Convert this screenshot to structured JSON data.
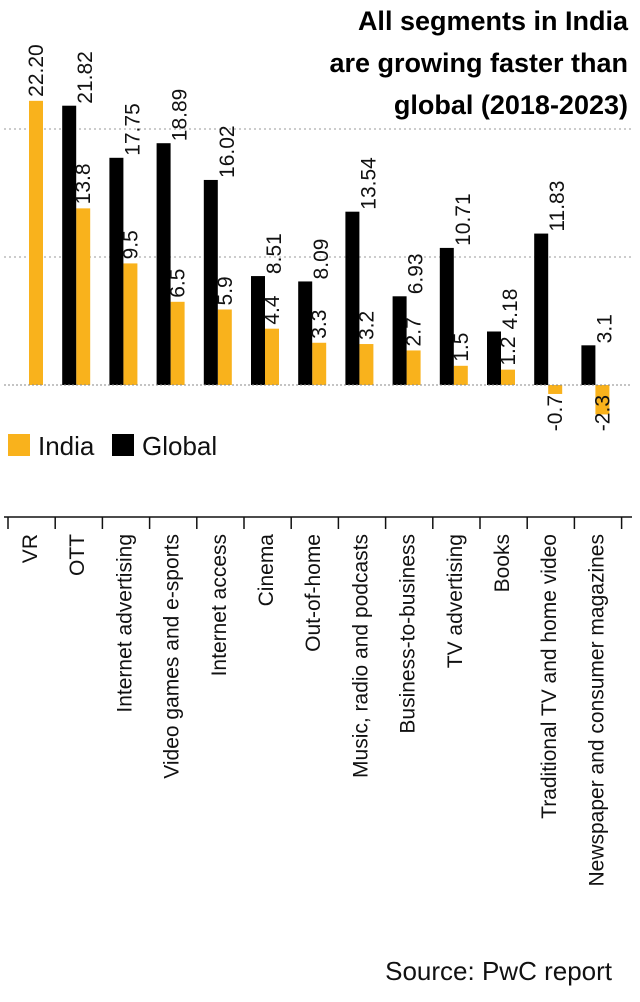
{
  "chart_data": {
    "type": "bar",
    "title": [
      "All segments in India",
      "are growing faster than",
      "global (2018-2023)"
    ],
    "categories": [
      "VR",
      "OTT",
      "Internet advertising",
      "Video games and e-sports",
      "Internet access",
      "Cinema",
      "Out-of-home",
      "Music, radio and podcasts",
      "Business-to-business",
      "TV advertising",
      "Books",
      "Traditional TV and home video",
      "Newspaper and consumer magazines"
    ],
    "series": [
      {
        "name": "India",
        "color": "#f9b21c",
        "values": [
          22.2,
          13.8,
          9.5,
          6.5,
          5.9,
          4.4,
          3.3,
          3.2,
          2.7,
          1.5,
          1.2,
          -0.7,
          -2.3
        ],
        "labels": [
          "22.20",
          "13.8",
          "9.5",
          "6.5",
          "5.9",
          "4.4",
          "3.3",
          "3.2",
          "2.7",
          "1.5",
          "1.2",
          "-0.7",
          "-2.3"
        ]
      },
      {
        "name": "Global",
        "color": "#000000",
        "values": [
          null,
          21.82,
          17.75,
          18.89,
          16.02,
          8.51,
          8.09,
          13.54,
          6.93,
          10.71,
          4.18,
          11.83,
          3.1
        ],
        "labels": [
          "",
          "21.82",
          "17.75",
          "18.89",
          "16.02",
          "8.51",
          "8.09",
          "13.54",
          "6.93",
          "10.71",
          "4.18",
          "11.83",
          "3.1"
        ]
      }
    ],
    "ylim": [
      -3,
      22.2
    ],
    "gridlines": [
      10,
      20
    ],
    "legend_position": "left, below zero line",
    "source": "Source: PwC report"
  }
}
